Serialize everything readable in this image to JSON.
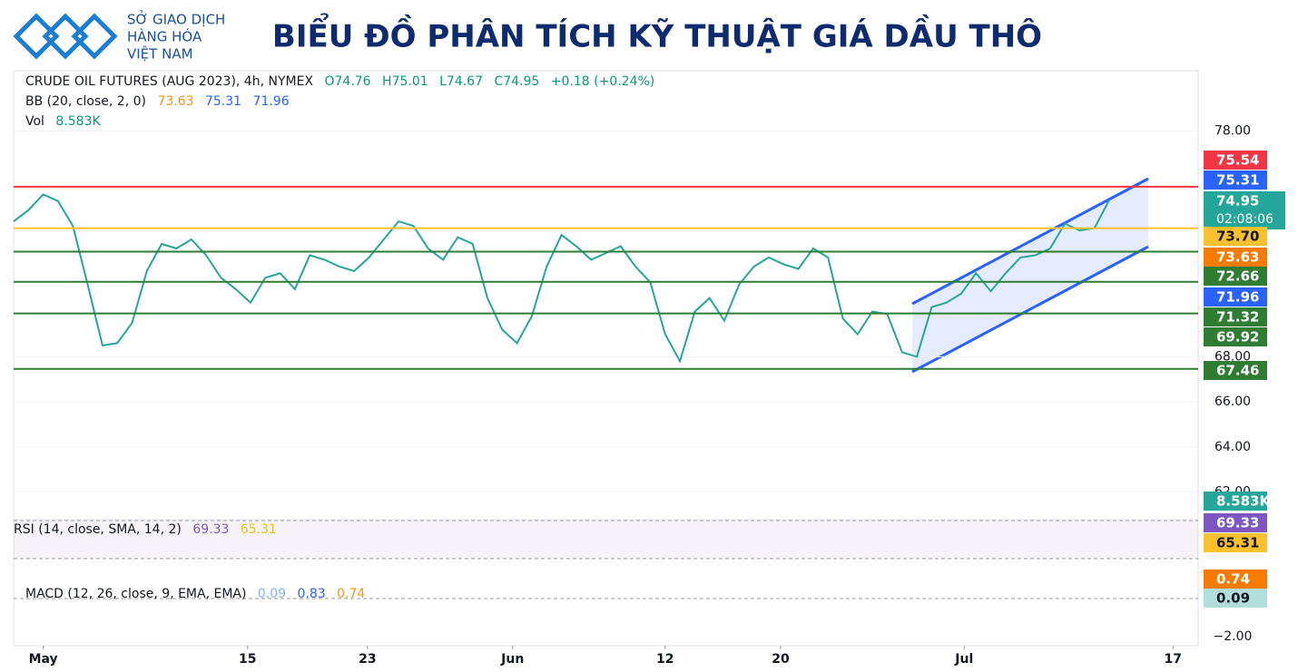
{
  "header": {
    "org": [
      "SỞ GIAO DỊCH",
      "HÀNG HÓA",
      "VIỆT NAM"
    ],
    "title": "BIỂU ĐỒ PHÂN TÍCH KỸ THUẬT GIÁ DẦU THÔ"
  },
  "chart_data": {
    "type": "line",
    "legend": {
      "symbol": "CRUDE OIL FUTURES (AUG 2023), 4h, NYMEX",
      "ohlc": [
        "O74.76",
        "H75.01",
        "L74.67",
        "C74.95"
      ],
      "change": "+0.18 (+0.24%)",
      "bb": "BB (20, close, 2, 0)",
      "bb_values": [
        "73.63",
        "75.31",
        "71.96"
      ],
      "vol": "Vol",
      "vol_value": "8.583K",
      "rsi": "RSI (14, close, SMA, 14, 2)",
      "rsi_values": [
        "69.33",
        "65.31"
      ],
      "macd": "MACD (12, 26, close, 9, EMA, EMA)",
      "macd_values": [
        "0.09",
        "0.83",
        "0.74"
      ],
      "macd_tick": "−2.00"
    },
    "x": [
      0,
      1,
      2,
      3,
      4,
      5,
      6,
      7,
      8,
      9,
      10,
      11,
      12,
      13,
      14,
      15,
      16,
      17,
      18,
      19,
      20,
      21,
      22,
      23,
      24,
      25,
      26,
      27,
      28,
      29,
      30,
      31,
      32,
      33,
      34,
      35,
      36,
      37,
      38,
      39,
      40,
      41,
      42,
      43,
      44,
      45,
      46,
      47,
      48,
      49,
      50,
      51,
      52,
      53,
      54,
      55,
      56,
      57,
      58,
      59,
      60,
      61,
      62,
      63,
      64,
      65,
      66,
      67,
      68,
      69,
      70,
      71,
      72,
      73,
      74
    ],
    "series": [
      {
        "color": "#26a69a",
        "values": [
          74.0,
          74.5,
          75.2,
          74.9,
          73.8,
          71.2,
          68.5,
          68.6,
          69.5,
          71.8,
          73.0,
          72.8,
          73.2,
          72.5,
          71.5,
          71.0,
          70.4,
          71.5,
          71.7,
          71.0,
          72.5,
          72.3,
          72.0,
          71.8,
          72.4,
          73.2,
          74.0,
          73.8,
          72.8,
          72.3,
          73.3,
          73.0,
          70.6,
          69.2,
          68.6,
          69.8,
          72.0,
          73.4,
          72.9,
          72.3,
          72.6,
          72.9,
          72.0,
          71.3,
          69.0,
          67.8,
          70.0,
          70.6,
          69.6,
          71.2,
          72.0,
          72.4,
          72.1,
          71.9,
          72.8,
          72.4,
          69.7,
          69.0,
          70.0,
          69.9,
          68.2,
          68.0,
          70.2,
          70.4,
          70.8,
          71.7,
          70.9,
          71.7,
          72.4,
          72.5,
          72.8,
          73.9,
          73.6,
          73.7,
          74.95
        ]
      }
    ],
    "xlim": [
      0,
      80
    ],
    "ylim": [
      61.3,
      80.6
    ],
    "xticks": [
      {
        "value": 2,
        "label": "May"
      },
      {
        "value": 15.8,
        "label": "15"
      },
      {
        "value": 23.9,
        "label": "23"
      },
      {
        "value": 33.7,
        "label": "Jun"
      },
      {
        "value": 44,
        "label": "12"
      },
      {
        "value": 51.8,
        "label": "20"
      },
      {
        "value": 64.2,
        "label": "Jul"
      },
      {
        "value": 78.3,
        "label": "17"
      }
    ],
    "yticks": [
      {
        "value": 78,
        "label": "78.00"
      },
      {
        "value": 68,
        "label": "68.00"
      },
      {
        "value": 66,
        "label": "66.00"
      },
      {
        "value": 64,
        "label": "64.00"
      },
      {
        "value": 62,
        "label": "62.00"
      }
    ],
    "levels": [
      {
        "value": 75.54,
        "color": "#f23645",
        "text_color": "#ffffff",
        "line": true
      },
      {
        "value": 75.31,
        "color": "#2962ff",
        "text_color": "#ffffff",
        "line": false
      },
      {
        "value": 74.95,
        "color": "#26a69a",
        "text_color": "#ffffff",
        "line": false,
        "countdown": "02:08:06"
      },
      {
        "value": 73.7,
        "label": "73.70",
        "color": "#fbc02d",
        "text_color": "#131722",
        "line": true
      },
      {
        "value": 73.63,
        "color": "#f57c00",
        "text_color": "#ffffff",
        "line": false
      },
      {
        "value": 72.66,
        "color": "#2e7d32",
        "text_color": "#ffffff",
        "line": true
      },
      {
        "value": 71.96,
        "color": "#2962ff",
        "text_color": "#ffffff",
        "line": false
      },
      {
        "value": 71.32,
        "color": "#2e7d32",
        "text_color": "#ffffff",
        "line": true
      },
      {
        "value": 69.92,
        "color": "#2e7d32",
        "text_color": "#ffffff",
        "line": true
      },
      {
        "value": 67.46,
        "color": "#2e7d32",
        "text_color": "#ffffff",
        "line": true
      }
    ]
  }
}
